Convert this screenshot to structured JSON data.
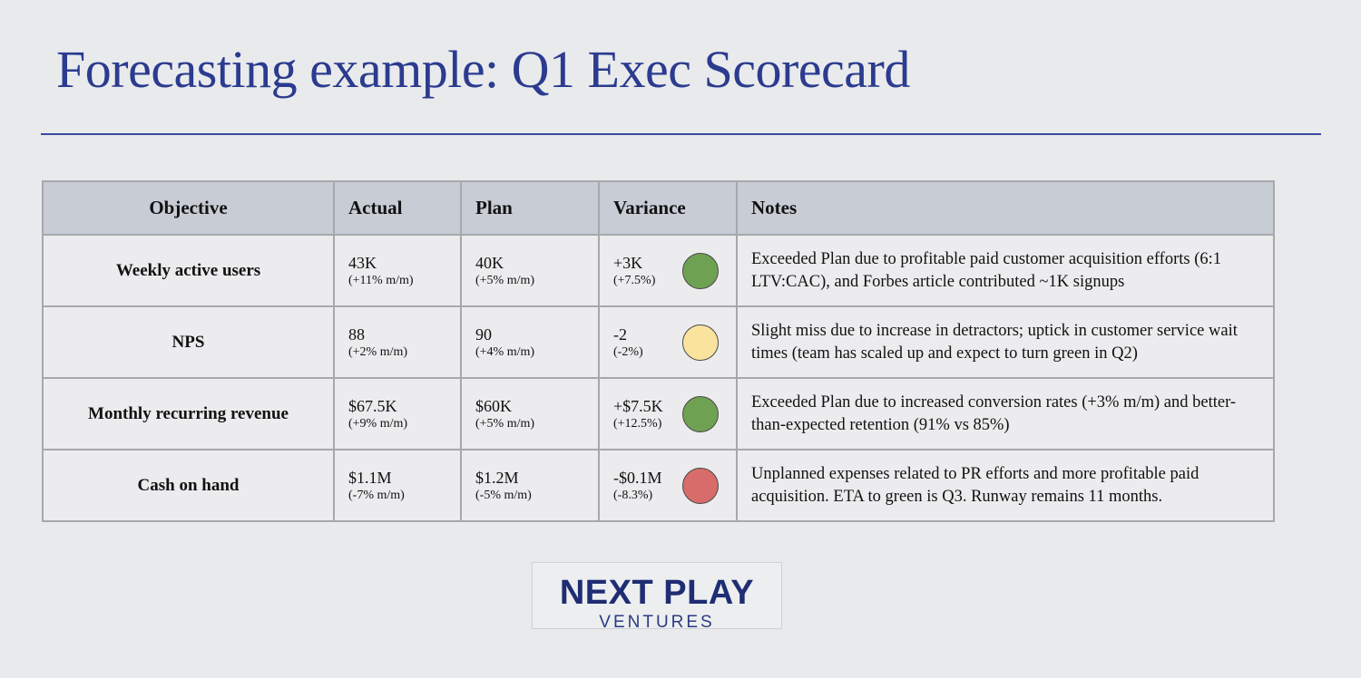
{
  "title": "Forecasting example: Q1 Exec Scorecard",
  "table": {
    "headers": [
      "Objective",
      "Actual",
      "Plan",
      "Variance",
      "Notes"
    ],
    "rows": [
      {
        "objective": "Weekly active users",
        "actual": "43K",
        "actual_change": "(+11% m/m)",
        "plan": "40K",
        "plan_change": "(+5% m/m)",
        "variance": "+3K",
        "variance_pct": "(+7.5%)",
        "status": "green",
        "status_color": "#6fa152",
        "notes": "Exceeded Plan due to profitable paid customer acquisition efforts (6:1 LTV:CAC), and Forbes article contributed ~1K signups"
      },
      {
        "objective": "NPS",
        "actual": "88",
        "actual_change": "(+2% m/m)",
        "plan": "90",
        "plan_change": "(+4% m/m)",
        "variance": "-2",
        "variance_pct": "(-2%)",
        "status": "yellow",
        "status_color": "#fae49d",
        "notes": "Slight miss due to increase in detractors; uptick in customer service wait times (team has scaled up and expect to turn green in Q2)"
      },
      {
        "objective": "Monthly recurring revenue",
        "actual": "$67.5K",
        "actual_change": "(+9% m/m)",
        "plan": "$60K",
        "plan_change": "(+5% m/m)",
        "variance": "+$7.5K",
        "variance_pct": "(+12.5%)",
        "status": "green",
        "status_color": "#6fa152",
        "notes": "Exceeded Plan due to increased conversion rates (+3% m/m) and better-than-expected retention (91% vs 85%)"
      },
      {
        "objective": "Cash on hand",
        "actual": "$1.1M",
        "actual_change": "(-7% m/m)",
        "plan": "$1.2M",
        "plan_change": "(-5% m/m)",
        "variance": "-$0.1M",
        "variance_pct": "(-8.3%)",
        "status": "red",
        "status_color": "#d86c6a",
        "notes": "Unplanned expenses related to PR efforts and more profitable paid acquisition. ETA to green is Q3. Runway remains 11 months."
      }
    ]
  },
  "logo": {
    "main": "NEXT PLAY",
    "sub": "VENTURES"
  }
}
